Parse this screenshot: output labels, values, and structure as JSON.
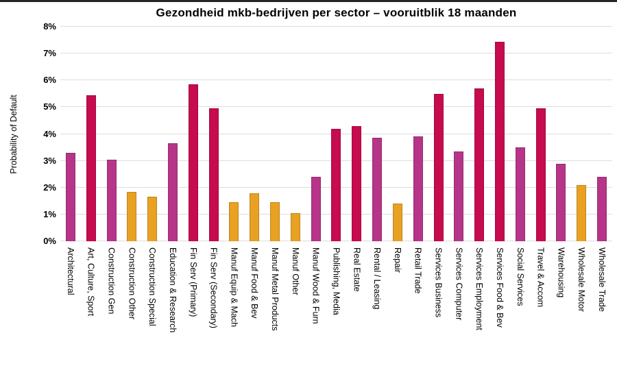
{
  "chart_data": {
    "type": "bar",
    "title": "Gezondheid mkb-bedrijven per sector – vooruitblik 18 maanden",
    "ylabel": "Probability of Default",
    "xlabel": "",
    "ylim": [
      0,
      8
    ],
    "ytick_labels": [
      "0%",
      "1%",
      "2%",
      "3%",
      "4%",
      "5%",
      "6%",
      "7%",
      "8%"
    ],
    "grid": "horizontal-only",
    "legend_position": "none",
    "value_unit": "percent",
    "categories": [
      "Architectural",
      "Art, Culture, Sport",
      "Construction Gen",
      "Construction Other",
      "Construction Special",
      "Education & Research",
      "Fin Serv (Primary)",
      "Fin Serv (Secondary)",
      "Manuf Equip & Mach",
      "Manuf Food & Bev",
      "Manuf Metal Products",
      "Manuf Other",
      "Manuf Wood & Furn",
      "Publishing, Media",
      "Real Estate",
      "Rental / Leasing",
      "Repair",
      "Retail Trade",
      "Services Business",
      "Services Computer",
      "Services Employment",
      "Services Food & Bev",
      "Social Services",
      "Travel & Accom",
      "Warehousing",
      "Wholesale Motor",
      "Wholesale Trade"
    ],
    "values": [
      3.3,
      5.45,
      3.05,
      1.85,
      1.65,
      3.65,
      5.85,
      4.95,
      1.45,
      1.8,
      1.45,
      1.05,
      2.4,
      4.2,
      4.3,
      3.85,
      1.4,
      3.9,
      5.5,
      3.35,
      5.7,
      7.45,
      3.5,
      4.95,
      2.9,
      2.1,
      2.4
    ],
    "bar_color_names": [
      "magenta",
      "crimson",
      "magenta",
      "orange",
      "orange",
      "magenta",
      "crimson",
      "crimson",
      "orange",
      "orange",
      "orange",
      "orange",
      "magenta",
      "crimson",
      "crimson",
      "magenta",
      "orange",
      "magenta",
      "crimson",
      "magenta",
      "crimson",
      "crimson",
      "magenta",
      "crimson",
      "magenta",
      "orange",
      "magenta"
    ],
    "palette": {
      "crimson": "#C60B4F",
      "magenta": "#B63589",
      "orange": "#E9A124"
    },
    "gridline_color": "#dcdcdc",
    "top_rule_color": "#262626",
    "text_color": "#000000",
    "background_color": "#ffffff"
  }
}
